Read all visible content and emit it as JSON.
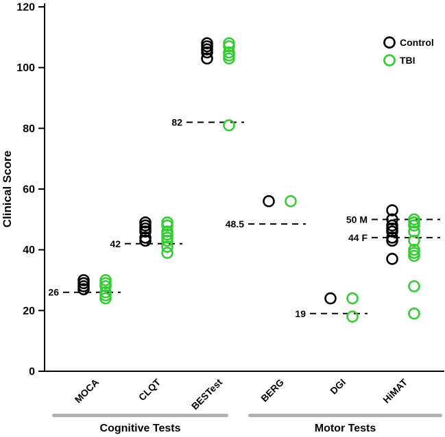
{
  "chart_data": {
    "type": "scatter",
    "title": "",
    "ylabel": "Clinical Score",
    "xlabel": "",
    "ylim": [
      0,
      120
    ],
    "yticks": [
      0,
      20,
      40,
      60,
      80,
      100,
      120
    ],
    "grid": false,
    "legend_position": "top-right",
    "categories": [
      "MOCA",
      "CLQT",
      "BESTest",
      "BERG",
      "DGI",
      "HiMAT"
    ],
    "groups": [
      {
        "label": "Cognitive Tests",
        "categories": [
          "MOCA",
          "CLQT",
          "BESTest"
        ]
      },
      {
        "label": "Motor Tests",
        "categories": [
          "BERG",
          "DGI",
          "HiMAT"
        ]
      }
    ],
    "series": [
      {
        "name": "Control",
        "color": "#000000",
        "marker": "open-circle",
        "values": {
          "MOCA": [
            30,
            29,
            28,
            27
          ],
          "CLQT": [
            49,
            48,
            47,
            46,
            44,
            43
          ],
          "BESTest": [
            108,
            107,
            106,
            105,
            103
          ],
          "BERG": [
            56
          ],
          "DGI": [
            24
          ],
          "HiMAT": [
            53,
            50,
            48,
            47,
            46,
            44,
            43,
            37
          ]
        }
      },
      {
        "name": "TBI",
        "color": "#33cc33",
        "marker": "open-circle",
        "values": {
          "MOCA": [
            30,
            29,
            28,
            26,
            25,
            24
          ],
          "CLQT": [
            49,
            48,
            46,
            45,
            44,
            43,
            41,
            39
          ],
          "BESTest": [
            108,
            107,
            105,
            104,
            103,
            81
          ],
          "BERG": [
            56
          ],
          "DGI": [
            24,
            18
          ],
          "HiMAT": [
            50,
            49,
            48,
            46,
            43,
            40,
            39,
            38,
            28,
            19
          ]
        }
      }
    ],
    "reference_lines": [
      {
        "category": "MOCA",
        "value": 26,
        "label": "26"
      },
      {
        "category": "CLQT",
        "value": 42,
        "label": "42"
      },
      {
        "category": "BESTest",
        "value": 82,
        "label": "82"
      },
      {
        "category": "BERG",
        "value": 48.5,
        "label": "48.5"
      },
      {
        "category": "DGI",
        "value": 19,
        "label": "19"
      },
      {
        "category": "HiMAT",
        "value": 50,
        "label": "50 M",
        "x2_offset": 54
      },
      {
        "category": "HiMAT",
        "value": 44,
        "label": "44 F",
        "x2_offset": 54
      }
    ],
    "group_bar_color": "#b0b0b0"
  }
}
